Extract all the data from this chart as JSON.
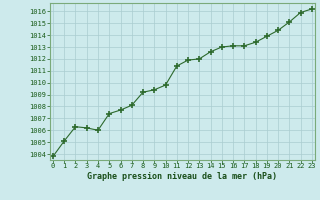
{
  "x": [
    0,
    1,
    2,
    3,
    4,
    5,
    6,
    7,
    8,
    9,
    10,
    11,
    12,
    13,
    14,
    15,
    16,
    17,
    18,
    19,
    20,
    21,
    22,
    23
  ],
  "y": [
    1003.8,
    1005.1,
    1006.3,
    1006.2,
    1006.0,
    1007.4,
    1007.7,
    1008.1,
    1009.2,
    1009.4,
    1009.8,
    1011.4,
    1011.9,
    1012.0,
    1012.6,
    1013.0,
    1013.1,
    1013.1,
    1013.4,
    1013.9,
    1014.4,
    1015.1,
    1015.9,
    1016.2
  ],
  "line_color": "#2d6a2d",
  "marker_color": "#2d6a2d",
  "bg_color": "#cdeaec",
  "grid_color": "#aacdd0",
  "xlabel": "Graphe pression niveau de la mer (hPa)",
  "xlabel_color": "#1a4f1a",
  "tick_color": "#1a5c1a",
  "ylim": [
    1003.5,
    1016.7
  ],
  "yticks": [
    1004,
    1005,
    1006,
    1007,
    1008,
    1009,
    1010,
    1011,
    1012,
    1013,
    1014,
    1015,
    1016
  ],
  "xticks": [
    0,
    1,
    2,
    3,
    4,
    5,
    6,
    7,
    8,
    9,
    10,
    11,
    12,
    13,
    14,
    15,
    16,
    17,
    18,
    19,
    20,
    21,
    22,
    23
  ],
  "xlim": [
    -0.3,
    23.3
  ]
}
